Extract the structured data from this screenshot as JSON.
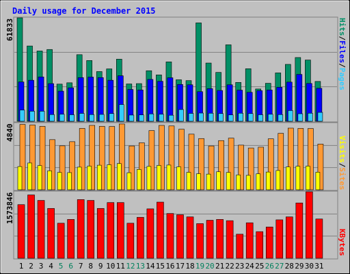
{
  "chart_data": {
    "type": "bar",
    "title": "Daily usage for December 2015",
    "categories": [
      "1",
      "2",
      "3",
      "4",
      "5",
      "6",
      "7",
      "8",
      "9",
      "10",
      "11",
      "12",
      "13",
      "14",
      "15",
      "16",
      "17",
      "18",
      "19",
      "20",
      "21",
      "22",
      "23",
      "24",
      "25",
      "26",
      "27",
      "28",
      "29",
      "30",
      "31"
    ],
    "weekend_days": [
      "5",
      "6",
      "12",
      "13",
      "19",
      "20",
      "26",
      "27"
    ],
    "panels": [
      {
        "id": "traffic",
        "max_label": "61833",
        "ymax": 61833,
        "series": [
          {
            "name": "Pages",
            "color": "#33ccff",
            "values": [
              6700,
              6000,
              6000,
              4000,
              4200,
              3900,
              4700,
              4000,
              4100,
              4600,
              10000,
              3700,
              3800,
              4400,
              4200,
              3600,
              7000,
              4700,
              4900,
              4800,
              4600,
              3800,
              4800,
              4600,
              3900,
              4200,
              4000,
              6400,
              4500,
              4800,
              5300
            ]
          },
          {
            "name": "Files",
            "color": "#0000ff",
            "values": [
              23500,
              24500,
              26500,
              22500,
              18000,
              20000,
              26100,
              26400,
              26100,
              24500,
              27200,
              19000,
              18700,
              25000,
              23900,
              26000,
              22000,
              21800,
              17700,
              19500,
              18400,
              21800,
              18600,
              17300,
              18300,
              18700,
              20300,
              23400,
              28000,
              22600,
              19700
            ]
          },
          {
            "name": "Hits",
            "color": "#008f65",
            "values": [
              61833,
              45000,
              42000,
              42900,
              22200,
              23000,
              39800,
              36300,
              29700,
              31300,
              37100,
              22300,
              22500,
              30200,
              27700,
              35500,
              24800,
              24300,
              58800,
              34800,
              29200,
              45700,
              23200,
              31400,
              19300,
              22700,
              28900,
              34000,
              38100,
              36600,
              23800
            ]
          }
        ]
      },
      {
        "id": "visits",
        "max_label": "4840",
        "ymax": 4840,
        "series": [
          {
            "name": "Sites",
            "color": "#ff9933",
            "values": [
              4760,
              4720,
              4620,
              3650,
              3200,
              3500,
              4470,
              4690,
              4620,
              4610,
              4790,
              3190,
              3420,
              4310,
              4690,
              4650,
              4410,
              4050,
              3730,
              3190,
              3580,
              3760,
              3250,
              3040,
              3100,
              3710,
              4110,
              4490,
              4470,
              4460,
              3330
            ]
          },
          {
            "name": "Visits",
            "color": "#ffff00",
            "values": [
              1690,
              1950,
              1760,
              1380,
              1260,
              1250,
              1650,
              1720,
              1790,
              1820,
              1910,
              1240,
              1480,
              1700,
              1770,
              1800,
              1670,
              1270,
              1170,
              1140,
              1310,
              1260,
              1080,
              1050,
              1160,
              1290,
              1400,
              1660,
              1710,
              1720,
              1280
            ]
          }
        ]
      },
      {
        "id": "kbytes",
        "max_label": "1573846",
        "ymax": 1573846,
        "series": [
          {
            "name": "KBytes",
            "color": "#ff0000",
            "values": [
              1270000,
              1500000,
              1370000,
              1180000,
              830000,
              920000,
              1390000,
              1370000,
              1180000,
              1320000,
              1320000,
              830000,
              970000,
              1170000,
              1330000,
              1060000,
              1030000,
              980000,
              820000,
              900000,
              920000,
              890000,
              570000,
              840000,
              630000,
              740000,
              910000,
              980000,
              1310000,
              1573846,
              930000
            ]
          }
        ]
      }
    ],
    "legend": {
      "panel1": [
        "Pages",
        "Files",
        "Hits"
      ],
      "panel2": [
        "Sites",
        "Visits"
      ],
      "panel3": [
        "KBytes"
      ]
    },
    "colors": {
      "background": "#c0c0c0",
      "title": "#0000ff",
      "weekday_label": "#000000",
      "weekend_label": "#00805c"
    }
  }
}
